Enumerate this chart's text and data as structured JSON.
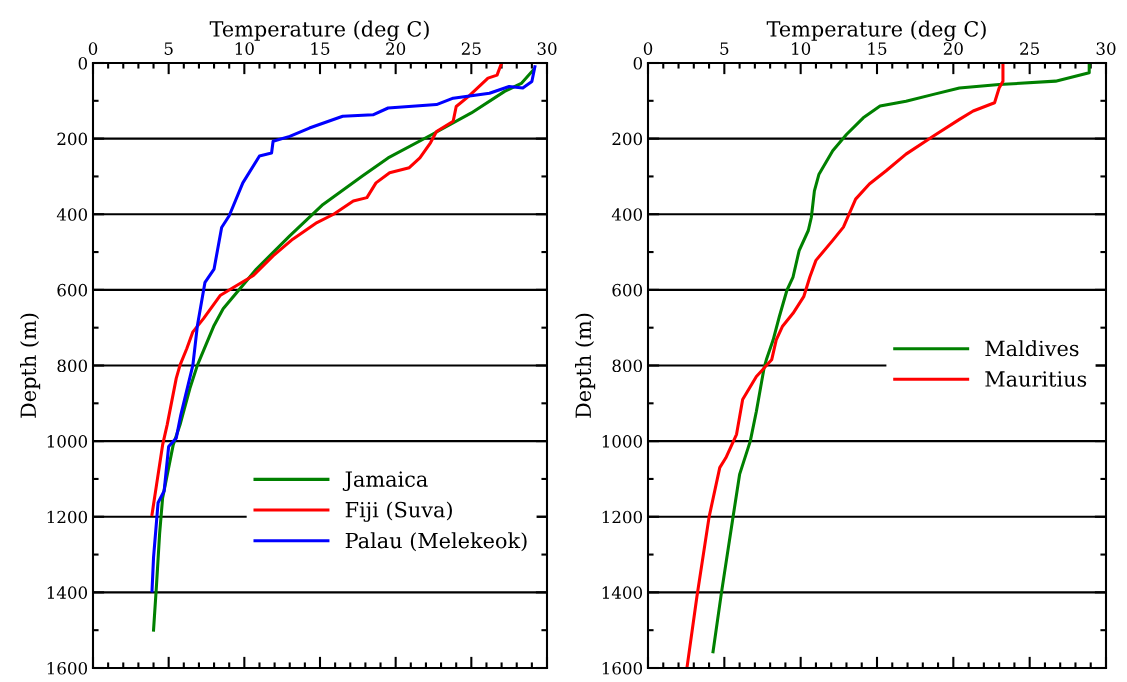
{
  "chart_data": [
    {
      "type": "line",
      "xlabel": "Temperature (deg C)",
      "ylabel": "Depth (m)",
      "xlim": [
        0,
        30
      ],
      "xticks": [
        0,
        {
          "value": 1,
          "label": null
        },
        {
          "value": 2,
          "label": null
        },
        {
          "value": 3,
          "label": null
        },
        {
          "value": 4,
          "label": null
        },
        5,
        {
          "value": 6,
          "label": null
        },
        {
          "value": 7,
          "label": null
        },
        {
          "value": 8,
          "label": null
        },
        {
          "value": 9,
          "label": null
        },
        10,
        {
          "value": 11,
          "label": null
        },
        {
          "value": 12,
          "label": null
        },
        {
          "value": 13,
          "label": null
        },
        {
          "value": 14,
          "label": null
        },
        15,
        {
          "value": 16,
          "label": null
        },
        {
          "value": 17,
          "label": null
        },
        {
          "value": 18,
          "label": null
        },
        {
          "value": 19,
          "label": null
        },
        20,
        {
          "value": 21,
          "label": null
        },
        {
          "value": 22,
          "label": null
        },
        {
          "value": 23,
          "label": null
        },
        {
          "value": 24,
          "label": null
        },
        25,
        {
          "value": 26,
          "label": null
        },
        {
          "value": 27,
          "label": null
        },
        {
          "value": 28,
          "label": null
        },
        {
          "value": 29,
          "label": null
        },
        30
      ],
      "ylim": [
        1600,
        0
      ],
      "yticks": [
        0,
        {
          "value": 100,
          "label": null
        },
        200,
        {
          "value": 300,
          "label": null
        },
        400,
        {
          "value": 500,
          "label": null
        },
        600,
        {
          "value": 700,
          "label": null
        },
        800,
        {
          "value": 900,
          "label": null
        },
        1000,
        {
          "value": 1100,
          "label": null
        },
        1200,
        {
          "value": 1300,
          "label": null
        },
        1400,
        {
          "value": 1500,
          "label": null
        },
        1600
      ],
      "grid": "y",
      "legend": "bottom right",
      "line_style": "solid",
      "marker": "none",
      "series": [
        {
          "name": "Jamaica",
          "color": "#008000",
          "x": [
            29.1,
            28.3,
            27.2,
            25.0,
            22.4,
            19.5,
            17.8,
            15.2,
            13.0,
            10.8,
            8.6,
            8.0,
            6.9,
            6.4,
            5.75,
            5.3,
            4.6,
            4.4,
            4.2,
            4.0
          ],
          "values": [
            18,
            54,
            75,
            132,
            189,
            251,
            299,
            374,
            457,
            545,
            650,
            694,
            799,
            861,
            957,
            1010,
            1150,
            1246,
            1378,
            1500
          ]
        },
        {
          "name": "Fiji (Suva)",
          "color": "#ff0000",
          "x": [
            27.0,
            26.7,
            26.1,
            24.8,
            24.0,
            23.8,
            22.7,
            22.3,
            21.6,
            20.9,
            19.6,
            18.7,
            18.1,
            17.2,
            15.9,
            14.8,
            13.2,
            11.9,
            10.6,
            9.3,
            8.4,
            7.3,
            6.6,
            6.2,
            5.75,
            5.5,
            4.9,
            4.6,
            4.2,
            3.9
          ],
          "values": [
            0,
            32,
            40,
            89,
            115,
            154,
            181,
            211,
            251,
            277,
            290,
            317,
            356,
            365,
            400,
            422,
            466,
            510,
            562,
            593,
            615,
            676,
            711,
            755,
            799,
            834,
            957,
            1010,
            1115,
            1194
          ]
        },
        {
          "name": "Palau (Melekeok)",
          "color": "#0000ff",
          "x": [
            29.2,
            29.0,
            28.4,
            27.5,
            26.2,
            23.8,
            22.7,
            19.5,
            18.5,
            16.5,
            14.3,
            13.0,
            11.9,
            11.8,
            11.0,
            9.9,
            9.0,
            8.5,
            8.0,
            7.4,
            6.9,
            6.6,
            5.8,
            5.5,
            5.0,
            4.7,
            4.3,
            4.0,
            3.9
          ],
          "values": [
            10,
            49,
            66,
            62,
            80,
            93,
            110,
            119,
            137,
            141,
            172,
            194,
            207,
            238,
            246,
            317,
            404,
            435,
            545,
            580,
            694,
            799,
            931,
            992,
            1014,
            1132,
            1163,
            1308,
            1396
          ]
        }
      ]
    },
    {
      "type": "line",
      "xlabel": "Temperature (deg C)",
      "ylabel": "Depth (m)",
      "xlim": [
        0,
        30
      ],
      "xticks": [
        0,
        {
          "value": 1,
          "label": null
        },
        {
          "value": 2,
          "label": null
        },
        {
          "value": 3,
          "label": null
        },
        {
          "value": 4,
          "label": null
        },
        5,
        {
          "value": 6,
          "label": null
        },
        {
          "value": 7,
          "label": null
        },
        {
          "value": 8,
          "label": null
        },
        {
          "value": 9,
          "label": null
        },
        10,
        {
          "value": 11,
          "label": null
        },
        {
          "value": 12,
          "label": null
        },
        {
          "value": 13,
          "label": null
        },
        {
          "value": 14,
          "label": null
        },
        15,
        {
          "value": 16,
          "label": null
        },
        {
          "value": 17,
          "label": null
        },
        {
          "value": 18,
          "label": null
        },
        {
          "value": 19,
          "label": null
        },
        20,
        {
          "value": 21,
          "label": null
        },
        {
          "value": 22,
          "label": null
        },
        {
          "value": 23,
          "label": null
        },
        {
          "value": 24,
          "label": null
        },
        25,
        {
          "value": 26,
          "label": null
        },
        {
          "value": 27,
          "label": null
        },
        {
          "value": 28,
          "label": null
        },
        {
          "value": 29,
          "label": null
        },
        30
      ],
      "ylim": [
        1600,
        0
      ],
      "yticks": [
        0,
        {
          "value": 100,
          "label": null
        },
        200,
        {
          "value": 300,
          "label": null
        },
        400,
        {
          "value": 500,
          "label": null
        },
        600,
        {
          "value": 700,
          "label": null
        },
        800,
        {
          "value": 900,
          "label": null
        },
        1000,
        {
          "value": 1100,
          "label": null
        },
        1200,
        {
          "value": 1300,
          "label": null
        },
        1400,
        {
          "value": 1500,
          "label": null
        },
        1600
      ],
      "grid": "y",
      "legend": "right",
      "line_style": "solid",
      "marker": "none",
      "series": [
        {
          "name": "Maldives",
          "color": "#008000",
          "x": [
            28.9,
            28.9,
            26.7,
            23.0,
            20.4,
            18.7,
            16.9,
            15.2,
            14.1,
            13.0,
            12.1,
            11.2,
            10.9,
            10.7,
            10.5,
            9.9,
            9.5,
            9.1,
            8.6,
            8.2,
            7.75,
            7.6,
            7.1,
            6.7,
            6.0,
            5.6,
            4.8,
            4.26
          ],
          "values": [
            4,
            26,
            48,
            57,
            66,
            83,
            101,
            114,
            145,
            189,
            232,
            294,
            338,
            408,
            443,
            496,
            566,
            601,
            671,
            732,
            785,
            807,
            921,
            1000,
            1088,
            1193,
            1404,
            1557
          ]
        },
        {
          "name": "Mauritius",
          "color": "#ff0000",
          "x": [
            23.25,
            23.25,
            23.0,
            22.7,
            21.3,
            20.4,
            18.7,
            16.9,
            15.6,
            14.5,
            13.6,
            12.8,
            12.1,
            11.0,
            10.6,
            10.2,
            9.5,
            8.8,
            8.4,
            8.1,
            7.1,
            6.2,
            5.8,
            5.1,
            4.7,
            4.0,
            3.2,
            2.55
          ],
          "values": [
            0,
            48,
            66,
            105,
            127,
            149,
            193,
            241,
            285,
            320,
            360,
            434,
            469,
            522,
            566,
            618,
            662,
            697,
            732,
            785,
            829,
            890,
            982,
            1044,
            1070,
            1201,
            1412,
            1600
          ]
        }
      ]
    }
  ]
}
